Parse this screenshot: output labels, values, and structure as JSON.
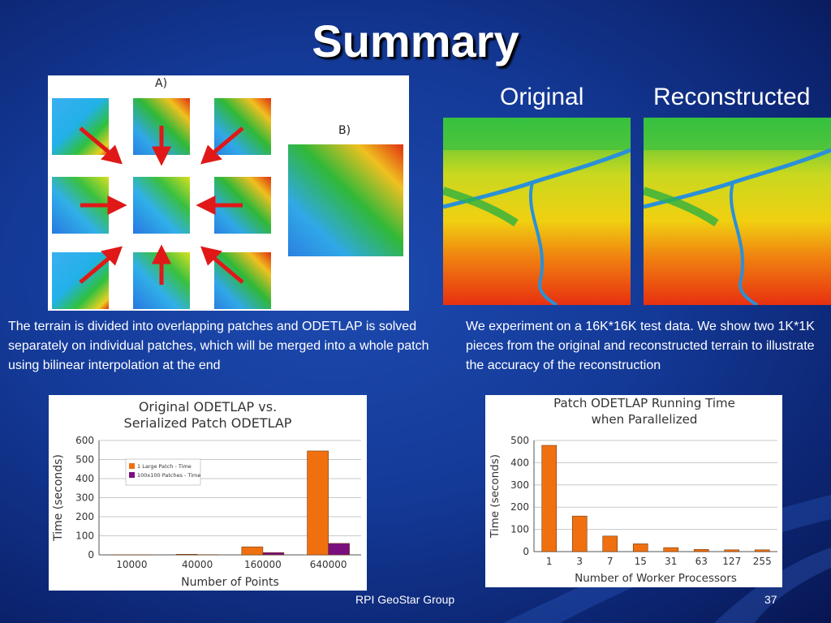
{
  "slide": {
    "title": "Summary",
    "footer_center": "RPI GeoStar Group",
    "page_number": "37"
  },
  "patch_figure": {
    "label_a": "A)",
    "label_b": "B)"
  },
  "terrain": {
    "label_original": "Original",
    "label_reconstructed": "Reconstructed"
  },
  "captions": {
    "left": "The terrain is divided into overlapping patches and ODETLAP is solved separately on individual patches, which will be merged into a whole patch using bilinear interpolation at the end",
    "right": "We experiment on a 16K*16K test data. We show two 1K*1K pieces from the original and reconstructed terrain to illustrate the accuracy of the reconstruction"
  },
  "chart_data": [
    {
      "type": "bar",
      "title": "Original ODETLAP vs. Serialized Patch ODETLAP",
      "title_lines": [
        "Original ODETLAP vs.",
        "Serialized Patch ODETLAP"
      ],
      "xlabel": "Number of Points",
      "ylabel": "Time (seconds)",
      "categories": [
        "10000",
        "40000",
        "160000",
        "640000"
      ],
      "ylim": [
        0,
        600
      ],
      "yticks": [
        "0",
        "100",
        "200",
        "300",
        "400",
        "500",
        "600"
      ],
      "grid": true,
      "legend_position": "top-left",
      "series": [
        {
          "name": "1 Large Patch - Time",
          "color": "#f07010",
          "values": [
            0.5,
            3,
            42,
            545
          ]
        },
        {
          "name": "100x100 Patches - Time",
          "color": "#7a0e7e",
          "values": [
            0.2,
            1,
            12,
            60
          ]
        }
      ]
    },
    {
      "type": "bar",
      "title": "Patch ODETLAP Running Time when Parallelized",
      "title_lines": [
        "Patch ODETLAP Running Time",
        "when Parallelized"
      ],
      "xlabel": "Number of Worker Processors",
      "ylabel": "Time (seconds)",
      "categories": [
        "1",
        "3",
        "7",
        "15",
        "31",
        "63",
        "127",
        "255"
      ],
      "ylim": [
        0,
        500
      ],
      "yticks": [
        "0",
        "100",
        "200",
        "300",
        "400",
        "500"
      ],
      "grid": true,
      "series": [
        {
          "color": "#f07010",
          "values": [
            478,
            160,
            70,
            35,
            18,
            10,
            8,
            8
          ]
        }
      ]
    }
  ],
  "colors": {
    "background": "#143a98",
    "bar_orange": "#f07010",
    "bar_purple": "#7a0e7e"
  }
}
